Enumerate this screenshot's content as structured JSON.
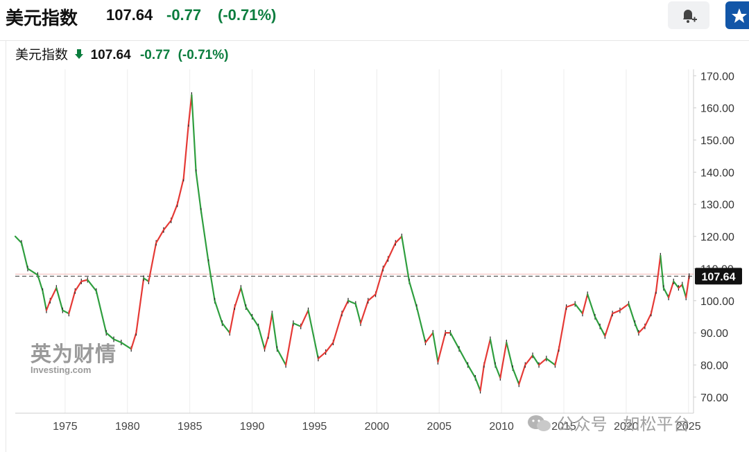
{
  "header": {
    "title": "美元指数",
    "price": "107.64",
    "change": "-0.77",
    "change_pct": "(-0.71%)",
    "alert_icon": "bell-plus-icon",
    "star_icon": "star-icon"
  },
  "legend": {
    "name": "美元指数",
    "arrow_icon": "down-arrow-icon",
    "price": "107.64",
    "change": "-0.77",
    "change_pct": "(-0.71%)"
  },
  "watermark": {
    "brand_cn": "英为财情",
    "brand_en": "Investing.com"
  },
  "wechat": {
    "text": "公众号 · 如松平台",
    "icon": "wechat-icon"
  },
  "colors": {
    "up": "#e53935",
    "down": "#2e9e3e",
    "accent_green": "#0b7d3e",
    "last_price_bg": "#111111",
    "ref_line": "#d0463c"
  },
  "chart_data": {
    "type": "line",
    "title": "美元指数",
    "xlabel": "",
    "ylabel": "",
    "xlim": [
      1971,
      2025.4
    ],
    "ylim": [
      65,
      172
    ],
    "x_ticks": [
      1975,
      1980,
      1985,
      1990,
      1995,
      2000,
      2005,
      2010,
      2015,
      2020,
      2025
    ],
    "x_tick_labels": [
      "1975",
      "1980",
      "1985",
      "1990",
      "1995",
      "2000",
      "2005",
      "2010",
      "2015",
      "2020",
      "2025"
    ],
    "y_ticks": [
      70,
      80,
      90,
      100,
      110,
      120,
      130,
      140,
      150,
      160,
      170
    ],
    "y_tick_labels": [
      "70.00",
      "80.00",
      "90.00",
      "100.00",
      "110.00",
      "120.00",
      "130.00",
      "140.00",
      "150.00",
      "160.00",
      "170.00"
    ],
    "last_value": 107.64,
    "last_value_label": "107.64",
    "reference_line": 107.64,
    "grid": "vertical",
    "series": [
      {
        "x": [
          1971.0,
          1971.5,
          1972.0,
          1972.8,
          1973.2,
          1973.5,
          1973.8,
          1974.3,
          1974.8,
          1975.3,
          1975.8,
          1976.3,
          1976.8,
          1977.5,
          1978.3,
          1978.9,
          1979.5,
          1980.3,
          1980.7,
          1981.3,
          1981.7,
          1982.3,
          1982.9,
          1983.5,
          1984.0,
          1984.5,
          1984.9,
          1985.15,
          1985.5,
          1985.9,
          1986.5,
          1987.0,
          1987.6,
          1988.2,
          1988.6,
          1989.1,
          1989.5,
          1990.0,
          1990.5,
          1991.0,
          1991.3,
          1991.6,
          1992.0,
          1992.7,
          1993.3,
          1993.9,
          1994.5,
          1995.3,
          1995.9,
          1996.5,
          1997.2,
          1997.7,
          1998.3,
          1998.7,
          1999.3,
          1999.9,
          2000.5,
          2000.9,
          2001.5,
          2002.0,
          2002.6,
          2003.2,
          2003.9,
          2004.5,
          2004.9,
          2005.5,
          2005.9,
          2006.6,
          2007.3,
          2007.9,
          2008.3,
          2008.6,
          2009.1,
          2009.5,
          2009.9,
          2010.4,
          2010.9,
          2011.4,
          2011.9,
          2012.5,
          2013.0,
          2013.6,
          2014.3,
          2014.6,
          2015.2,
          2015.9,
          2016.5,
          2016.9,
          2017.5,
          2017.9,
          2018.3,
          2018.9,
          2019.5,
          2020.2,
          2020.7,
          2021.0,
          2021.5,
          2022.0,
          2022.4,
          2022.75,
          2023.0,
          2023.4,
          2023.8,
          2024.2,
          2024.5,
          2024.8,
          2025.05
        ],
        "y": [
          120.0,
          118.0,
          110.0,
          108.0,
          103.0,
          97.0,
          100.0,
          104.0,
          97.0,
          96.0,
          103.0,
          106.0,
          106.5,
          103.0,
          90.0,
          88.0,
          87.0,
          85.0,
          90.0,
          107.0,
          106.0,
          118.0,
          122.0,
          125.0,
          130.0,
          138.0,
          155.0,
          164.0,
          140.0,
          128.0,
          112.0,
          100.0,
          93.0,
          90.0,
          98.0,
          104.0,
          98.0,
          95.0,
          92.0,
          85.0,
          89.0,
          96.0,
          85.0,
          80.0,
          93.0,
          92.0,
          97.0,
          82.0,
          84.0,
          87.0,
          96.0,
          100.0,
          99.0,
          93.0,
          100.0,
          102.0,
          110.0,
          113.0,
          118.0,
          120.0,
          106.0,
          98.0,
          87.0,
          90.0,
          81.0,
          90.0,
          90.0,
          85.0,
          80.0,
          76.0,
          72.0,
          80.0,
          88.0,
          80.0,
          76.0,
          87.0,
          79.0,
          74.0,
          80.0,
          83.0,
          80.0,
          82.0,
          80.0,
          85.0,
          98.0,
          99.0,
          96.0,
          102.0,
          95.0,
          92.0,
          89.0,
          96.0,
          97.0,
          99.0,
          93.0,
          90.0,
          92.0,
          96.0,
          103.0,
          114.0,
          104.0,
          101.0,
          106.0,
          104.0,
          105.0,
          101.0,
          107.64
        ]
      }
    ]
  }
}
